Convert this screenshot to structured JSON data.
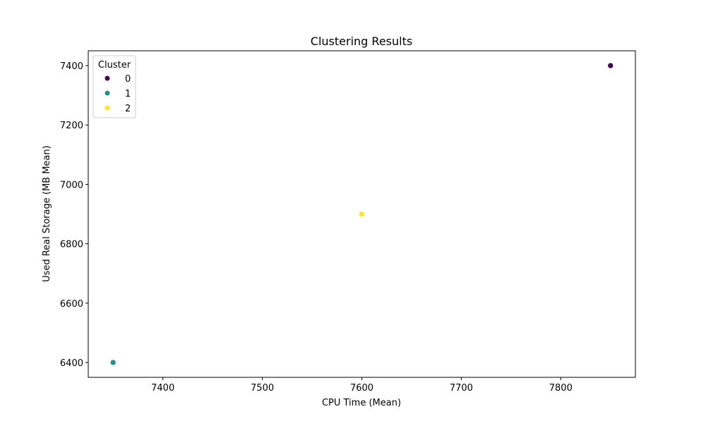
{
  "chart_data": {
    "type": "scatter",
    "title": "Clustering Results",
    "xlabel": "CPU Time (Mean)",
    "ylabel": "Used Real Storage (MB Mean)",
    "xlim": [
      7325,
      7875
    ],
    "ylim": [
      6350,
      7450
    ],
    "xticks": [
      7400,
      7500,
      7600,
      7700,
      7800
    ],
    "yticks": [
      6400,
      6600,
      6800,
      7000,
      7200,
      7400
    ],
    "grid": false,
    "legend": {
      "title": "Cluster",
      "placement": "top-left",
      "entries": [
        {
          "label": "0",
          "color": "#440154"
        },
        {
          "label": "1",
          "color": "#21918c"
        },
        {
          "label": "2",
          "color": "#fde725"
        }
      ]
    },
    "series": [
      {
        "cluster": "0",
        "color": "#440154",
        "points": [
          {
            "x": 7850,
            "y": 7400
          }
        ]
      },
      {
        "cluster": "1",
        "color": "#21918c",
        "points": [
          {
            "x": 7350,
            "y": 6400
          }
        ]
      },
      {
        "cluster": "2",
        "color": "#fde725",
        "points": [
          {
            "x": 7600,
            "y": 6900
          }
        ]
      }
    ]
  }
}
